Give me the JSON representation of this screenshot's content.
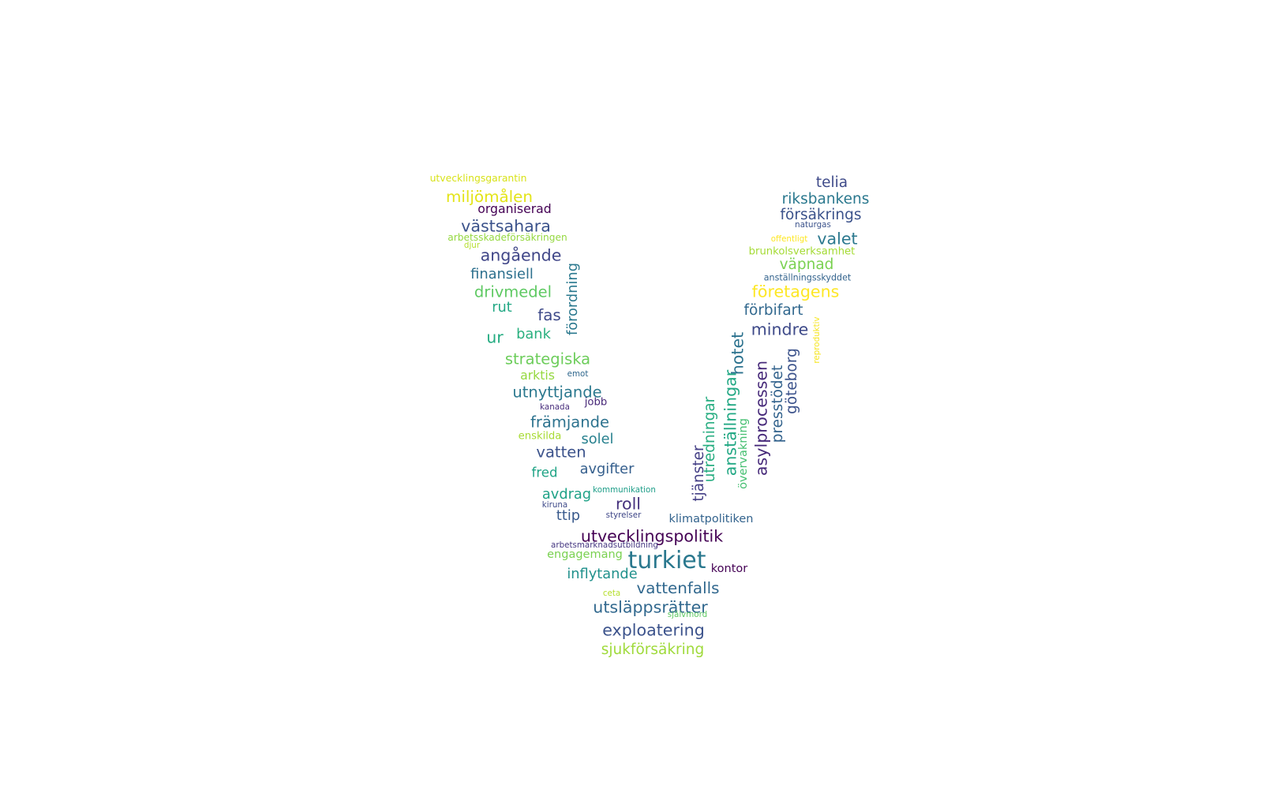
{
  "words": [
    {
      "text": "utvecklingsgarantin",
      "weight": 0.16,
      "color": "#d8e219",
      "vertical": false
    },
    {
      "text": "miljömålen",
      "weight": 0.52,
      "color": "#e3e418",
      "vertical": false
    },
    {
      "text": "organiserad",
      "weight": 0.32,
      "color": "#440154",
      "vertical": false
    },
    {
      "text": "västsahara",
      "weight": 0.55,
      "color": "#3b528b",
      "vertical": false
    },
    {
      "text": "arbetsskadeförsäkringen",
      "weight": 0.15,
      "color": "#95d840",
      "vertical": false
    },
    {
      "text": "djur",
      "weight": 0.06,
      "color": "#b5de2b",
      "vertical": false
    },
    {
      "text": "angående",
      "weight": 0.55,
      "color": "#404688",
      "vertical": false
    },
    {
      "text": "finansiell",
      "weight": 0.42,
      "color": "#2d708e",
      "vertical": false
    },
    {
      "text": "förordning",
      "weight": 0.42,
      "color": "#2a788e",
      "vertical": true
    },
    {
      "text": "drivmedel",
      "weight": 0.5,
      "color": "#5ec962",
      "vertical": false
    },
    {
      "text": "rut",
      "weight": 0.42,
      "color": "#22a884",
      "vertical": false
    },
    {
      "text": "fas",
      "weight": 0.52,
      "color": "#3e4a89",
      "vertical": false
    },
    {
      "text": "ur",
      "weight": 0.55,
      "color": "#25ac82",
      "vertical": false
    },
    {
      "text": "bank",
      "weight": 0.42,
      "color": "#2ab07f",
      "vertical": false
    },
    {
      "text": "strategiska",
      "weight": 0.5,
      "color": "#6ccd5a",
      "vertical": false
    },
    {
      "text": "arktis",
      "weight": 0.32,
      "color": "#95d840",
      "vertical": false
    },
    {
      "text": "emot",
      "weight": 0.06,
      "color": "#31688e",
      "vertical": false
    },
    {
      "text": "utnyttjande",
      "weight": 0.5,
      "color": "#2a788e",
      "vertical": false
    },
    {
      "text": "kanada",
      "weight": 0.06,
      "color": "#472d7b",
      "vertical": false
    },
    {
      "text": "jobb",
      "weight": 0.2,
      "color": "#482878",
      "vertical": false
    },
    {
      "text": "främjande",
      "weight": 0.5,
      "color": "#2c728e",
      "vertical": false
    },
    {
      "text": "enskilda",
      "weight": 0.2,
      "color": "#a8db34",
      "vertical": false
    },
    {
      "text": "solel",
      "weight": 0.42,
      "color": "#27808e",
      "vertical": false
    },
    {
      "text": "vatten",
      "weight": 0.5,
      "color": "#3b528b",
      "vertical": false
    },
    {
      "text": "fred",
      "weight": 0.36,
      "color": "#20a486",
      "vertical": false
    },
    {
      "text": "avgifter",
      "weight": 0.42,
      "color": "#355f8d",
      "vertical": false
    },
    {
      "text": "avdrag",
      "weight": 0.42,
      "color": "#1fa287",
      "vertical": false
    },
    {
      "text": "kommunikation",
      "weight": 0.06,
      "color": "#1f9e89",
      "vertical": false
    },
    {
      "text": "roll",
      "weight": 0.55,
      "color": "#46327e",
      "vertical": false
    },
    {
      "text": "kiruna",
      "weight": 0.06,
      "color": "#3e4a89",
      "vertical": false
    },
    {
      "text": "styrelser",
      "weight": 0.06,
      "color": "#3f4788",
      "vertical": false
    },
    {
      "text": "ttip",
      "weight": 0.42,
      "color": "#38598c",
      "vertical": false
    },
    {
      "text": "klimatpolitiken",
      "weight": 0.26,
      "color": "#33638d",
      "vertical": false
    },
    {
      "text": "utvecklingspolitik",
      "weight": 0.55,
      "color": "#440154",
      "vertical": false
    },
    {
      "text": "arbetsmarknadsutbildning",
      "weight": 0.06,
      "color": "#453781",
      "vertical": false
    },
    {
      "text": "engagemang",
      "weight": 0.26,
      "color": "#7ad151",
      "vertical": false
    },
    {
      "text": "turkiet",
      "weight": 1.0,
      "color": "#2a788e",
      "vertical": false
    },
    {
      "text": "kontor",
      "weight": 0.26,
      "color": "#440154",
      "vertical": false
    },
    {
      "text": "inflytande",
      "weight": 0.42,
      "color": "#21918c",
      "vertical": false
    },
    {
      "text": "vattenfalls",
      "weight": 0.52,
      "color": "#31688e",
      "vertical": false
    },
    {
      "text": "ceta",
      "weight": 0.06,
      "color": "#b5de2b",
      "vertical": false
    },
    {
      "text": "utsläppsrätter",
      "weight": 0.55,
      "color": "#31688e",
      "vertical": false
    },
    {
      "text": "självmord",
      "weight": 0.06,
      "color": "#5ec962",
      "vertical": false
    },
    {
      "text": "exploatering",
      "weight": 0.55,
      "color": "#3b528b",
      "vertical": false
    },
    {
      "text": "sjukförsäkring",
      "weight": 0.45,
      "color": "#9fda3a",
      "vertical": false
    },
    {
      "text": "telia",
      "weight": 0.45,
      "color": "#3e4a89",
      "vertical": false
    },
    {
      "text": "riksbankens",
      "weight": 0.45,
      "color": "#2a788e",
      "vertical": false
    },
    {
      "text": "försäkrings",
      "weight": 0.45,
      "color": "#3b528b",
      "vertical": false
    },
    {
      "text": "naturgas",
      "weight": 0.06,
      "color": "#3b528b",
      "vertical": false
    },
    {
      "text": "offentligt",
      "weight": 0.06,
      "color": "#fde725",
      "vertical": false
    },
    {
      "text": "valet",
      "weight": 0.55,
      "color": "#2a788e",
      "vertical": false
    },
    {
      "text": "brunkolsverksamhet",
      "weight": 0.2,
      "color": "#a5db36",
      "vertical": false
    },
    {
      "text": "väpnad",
      "weight": 0.45,
      "color": "#7ad151",
      "vertical": false
    },
    {
      "text": "anställningsskyddet",
      "weight": 0.1,
      "color": "#33638d",
      "vertical": false
    },
    {
      "text": "företagens",
      "weight": 0.55,
      "color": "#fde725",
      "vertical": false
    },
    {
      "text": "förbifart",
      "weight": 0.45,
      "color": "#31688e",
      "vertical": false
    },
    {
      "text": "reproduktiv",
      "weight": 0.06,
      "color": "#f6e620",
      "vertical": true
    },
    {
      "text": "mindre",
      "weight": 0.55,
      "color": "#3e4a89",
      "vertical": false
    },
    {
      "text": "hotet",
      "weight": 0.55,
      "color": "#2c728e",
      "vertical": true
    },
    {
      "text": "göteborg",
      "weight": 0.45,
      "color": "#3b528b",
      "vertical": true
    },
    {
      "text": "asylprocessen",
      "weight": 0.55,
      "color": "#472a7a",
      "vertical": true
    },
    {
      "text": "presstödet",
      "weight": 0.45,
      "color": "#33638d",
      "vertical": true
    },
    {
      "text": "anställningar",
      "weight": 0.55,
      "color": "#22a884",
      "vertical": true
    },
    {
      "text": "utredningar",
      "weight": 0.45,
      "color": "#27ad81",
      "vertical": true
    },
    {
      "text": "övervakning",
      "weight": 0.26,
      "color": "#44bf70",
      "vertical": true
    },
    {
      "text": "tjänster",
      "weight": 0.45,
      "color": "#433e85",
      "vertical": true
    }
  ]
}
